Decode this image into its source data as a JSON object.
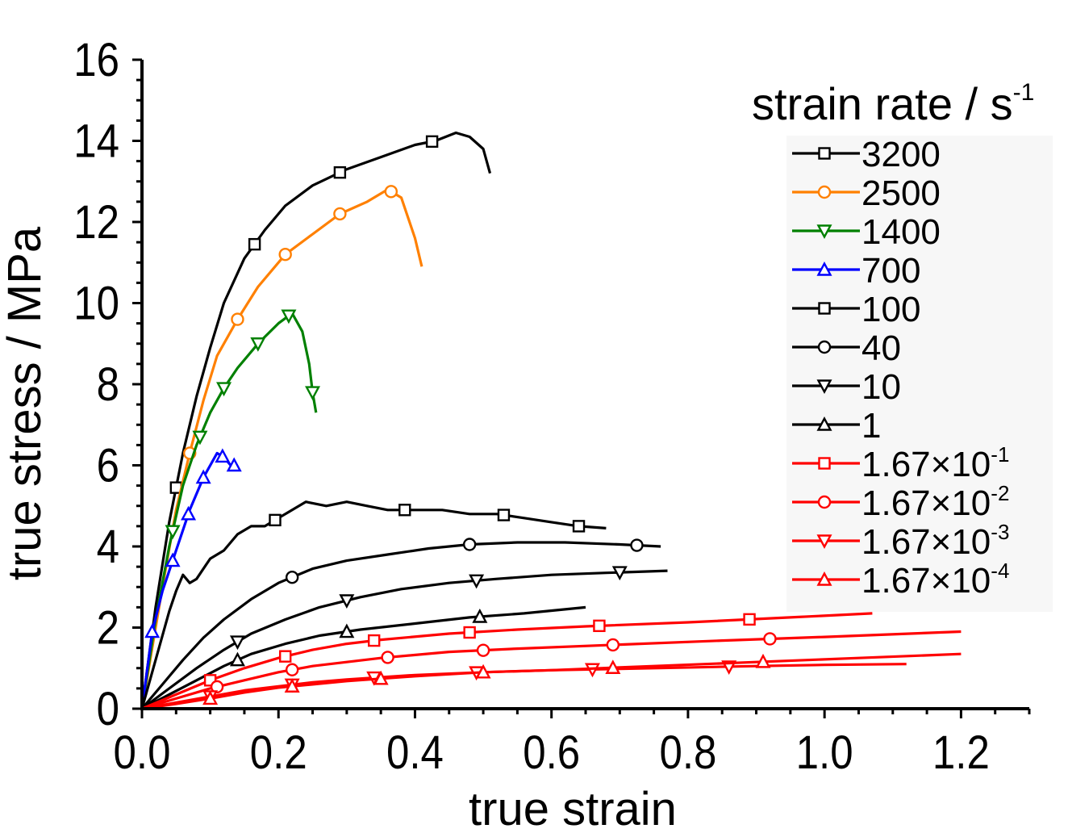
{
  "chart_data": {
    "type": "line",
    "xlabel": "true strain",
    "ylabel": "true stress / MPa",
    "xlim": [
      0,
      1.3
    ],
    "ylim": [
      0,
      16
    ],
    "xticks": [
      "0.0",
      "0.2",
      "0.4",
      "0.6",
      "0.8",
      "1.0",
      "1.2"
    ],
    "yticks": [
      "0",
      "2",
      "4",
      "6",
      "8",
      "10",
      "12",
      "14",
      "16"
    ],
    "legend": {
      "title": "strain rate / s",
      "title_sup": "-1",
      "position": "top-right"
    },
    "series": [
      {
        "name": "3200",
        "base": "",
        "exp": "",
        "color": "#000000",
        "marker": "square",
        "x": [
          0,
          0.02,
          0.04,
          0.06,
          0.08,
          0.1,
          0.12,
          0.15,
          0.18,
          0.21,
          0.25,
          0.3,
          0.35,
          0.4,
          0.43,
          0.46,
          0.48,
          0.5,
          0.51
        ],
        "y": [
          0,
          2.5,
          4.6,
          6.3,
          7.7,
          8.9,
          10.0,
          11.1,
          11.8,
          12.4,
          12.9,
          13.3,
          13.6,
          13.9,
          14.0,
          14.2,
          14.1,
          13.8,
          13.2
        ],
        "marker_x": [
          0.05,
          0.165,
          0.29,
          0.425
        ]
      },
      {
        "name": "2500",
        "base": "",
        "exp": "",
        "color": "#ff8000",
        "marker": "circle",
        "x": [
          0,
          0.03,
          0.05,
          0.07,
          0.09,
          0.11,
          0.14,
          0.17,
          0.21,
          0.25,
          0.29,
          0.33,
          0.36,
          0.38,
          0.4,
          0.41
        ],
        "y": [
          0,
          3.0,
          4.9,
          6.3,
          7.6,
          8.7,
          9.6,
          10.4,
          11.2,
          11.7,
          12.2,
          12.5,
          12.8,
          12.6,
          11.6,
          10.9
        ],
        "marker_x": [
          0.07,
          0.14,
          0.21,
          0.29,
          0.365
        ]
      },
      {
        "name": "1400",
        "base": "",
        "exp": "",
        "color": "#008000",
        "marker": "triangle-down",
        "x": [
          0,
          0.02,
          0.04,
          0.06,
          0.08,
          0.1,
          0.12,
          0.14,
          0.17,
          0.2,
          0.22,
          0.235,
          0.245,
          0.25,
          0.255
        ],
        "y": [
          0,
          2.2,
          4.0,
          5.5,
          6.5,
          7.3,
          7.9,
          8.4,
          9.0,
          9.5,
          9.75,
          9.3,
          8.5,
          7.8,
          7.3
        ],
        "marker_x": [
          0.045,
          0.085,
          0.12,
          0.17,
          0.215,
          0.25
        ]
      },
      {
        "name": "700",
        "base": "",
        "exp": "",
        "color": "#0000ff",
        "marker": "triangle-up",
        "x": [
          0,
          0.015,
          0.03,
          0.05,
          0.07,
          0.09,
          0.11,
          0.12,
          0.13,
          0.14
        ],
        "y": [
          0,
          1.9,
          2.9,
          3.9,
          4.9,
          5.7,
          6.3,
          6.2,
          6.0,
          6.0
        ],
        "marker_x": [
          0.015,
          0.045,
          0.068,
          0.09,
          0.118,
          0.135
        ]
      },
      {
        "name": "100",
        "base": "",
        "exp": "",
        "color": "#000000",
        "marker": "square",
        "x": [
          0,
          0.02,
          0.04,
          0.05,
          0.06,
          0.07,
          0.08,
          0.1,
          0.12,
          0.14,
          0.16,
          0.18,
          0.2,
          0.22,
          0.24,
          0.27,
          0.3,
          0.33,
          0.36,
          0.4,
          0.44,
          0.48,
          0.52,
          0.56,
          0.6,
          0.64,
          0.68
        ],
        "y": [
          0,
          1.2,
          2.4,
          2.9,
          3.3,
          3.1,
          3.2,
          3.7,
          3.9,
          4.3,
          4.5,
          4.5,
          4.7,
          4.9,
          5.1,
          5.0,
          5.1,
          5.0,
          4.9,
          4.9,
          4.9,
          4.8,
          4.8,
          4.7,
          4.6,
          4.5,
          4.45
        ],
        "marker_x": [
          0.195,
          0.385,
          0.53,
          0.64
        ]
      },
      {
        "name": "40",
        "base": "",
        "exp": "",
        "color": "#000000",
        "marker": "circle",
        "x": [
          0,
          0.03,
          0.06,
          0.09,
          0.12,
          0.16,
          0.2,
          0.25,
          0.3,
          0.36,
          0.42,
          0.48,
          0.55,
          0.62,
          0.7,
          0.76
        ],
        "y": [
          0,
          0.6,
          1.2,
          1.75,
          2.2,
          2.7,
          3.1,
          3.45,
          3.65,
          3.8,
          3.95,
          4.05,
          4.1,
          4.1,
          4.05,
          4.0
        ],
        "marker_x": [
          0.22,
          0.48,
          0.725
        ]
      },
      {
        "name": "10",
        "base": "",
        "exp": "",
        "color": "#000000",
        "marker": "triangle-down",
        "x": [
          0,
          0.04,
          0.08,
          0.12,
          0.16,
          0.21,
          0.26,
          0.32,
          0.38,
          0.45,
          0.52,
          0.6,
          0.68,
          0.77
        ],
        "y": [
          0,
          0.5,
          1.0,
          1.45,
          1.85,
          2.2,
          2.5,
          2.75,
          2.95,
          3.1,
          3.2,
          3.3,
          3.35,
          3.4
        ],
        "marker_x": [
          0.14,
          0.3,
          0.49,
          0.7
        ]
      },
      {
        "name": "1",
        "base": "",
        "exp": "",
        "color": "#000000",
        "marker": "triangle-up",
        "x": [
          0,
          0.04,
          0.08,
          0.12,
          0.16,
          0.21,
          0.26,
          0.32,
          0.4,
          0.48,
          0.56,
          0.65
        ],
        "y": [
          0,
          0.35,
          0.7,
          1.05,
          1.35,
          1.6,
          1.8,
          1.95,
          2.1,
          2.25,
          2.35,
          2.5
        ],
        "marker_x": [
          0.14,
          0.3,
          0.495
        ]
      },
      {
        "name": "",
        "base": "1.67×10",
        "exp": "-1",
        "color": "#ff0000",
        "marker": "square",
        "x": [
          0,
          0.05,
          0.1,
          0.15,
          0.2,
          0.25,
          0.3,
          0.35,
          0.45,
          0.55,
          0.65,
          0.8,
          0.95,
          1.07
        ],
        "y": [
          0,
          0.35,
          0.7,
          1.0,
          1.25,
          1.45,
          1.6,
          1.7,
          1.85,
          1.95,
          2.03,
          2.13,
          2.25,
          2.35
        ],
        "marker_x": [
          0.1,
          0.21,
          0.34,
          0.48,
          0.67,
          0.89
        ]
      },
      {
        "name": "",
        "base": "1.67×10",
        "exp": "-2",
        "color": "#ff0000",
        "marker": "circle",
        "x": [
          0,
          0.05,
          0.1,
          0.15,
          0.2,
          0.25,
          0.3,
          0.35,
          0.45,
          0.55,
          0.7,
          0.85,
          1.0,
          1.2
        ],
        "y": [
          0,
          0.25,
          0.5,
          0.7,
          0.9,
          1.05,
          1.15,
          1.25,
          1.4,
          1.48,
          1.58,
          1.68,
          1.77,
          1.9
        ],
        "marker_x": [
          0.11,
          0.22,
          0.36,
          0.5,
          0.69,
          0.92
        ]
      },
      {
        "name": "",
        "base": "1.67×10",
        "exp": "-3",
        "color": "#ff0000",
        "marker": "triangle-down",
        "x": [
          0,
          0.05,
          0.1,
          0.15,
          0.2,
          0.25,
          0.3,
          0.4,
          0.5,
          0.6,
          0.75,
          0.9,
          1.0,
          1.12
        ],
        "y": [
          0,
          0.15,
          0.3,
          0.45,
          0.55,
          0.65,
          0.72,
          0.83,
          0.9,
          0.95,
          1.0,
          1.05,
          1.08,
          1.1
        ],
        "marker_x": [
          0.1,
          0.22,
          0.34,
          0.49,
          0.66,
          0.86
        ]
      },
      {
        "name": "",
        "base": "1.67×10",
        "exp": "-4",
        "color": "#ff0000",
        "marker": "triangle-up",
        "x": [
          0,
          0.05,
          0.1,
          0.15,
          0.2,
          0.25,
          0.3,
          0.4,
          0.5,
          0.6,
          0.75,
          0.9,
          1.05,
          1.2
        ],
        "y": [
          0,
          0.12,
          0.25,
          0.4,
          0.52,
          0.6,
          0.68,
          0.8,
          0.9,
          0.95,
          1.05,
          1.15,
          1.25,
          1.35
        ],
        "marker_x": [
          0.1,
          0.22,
          0.35,
          0.5,
          0.69,
          0.91
        ]
      }
    ]
  }
}
